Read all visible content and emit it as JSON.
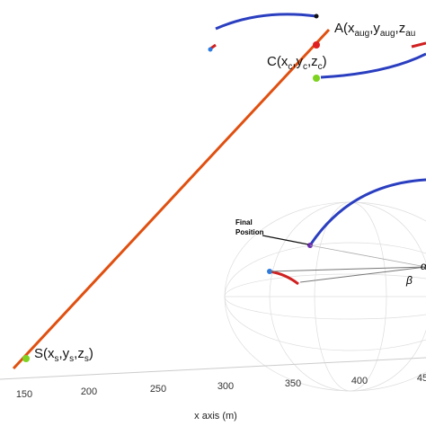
{
  "labels": {
    "a": [
      "A(x",
      "aug",
      ",y",
      "aug",
      ",z",
      "au"
    ],
    "c": [
      "C(x",
      "c",
      ",y",
      "c",
      ",z",
      "c",
      ")"
    ],
    "s": [
      "S(x",
      "s",
      ",y",
      "s",
      ",z",
      "s",
      ")"
    ]
  },
  "final_position": [
    "Final",
    "Position"
  ],
  "alpha": "α",
  "beta": "β",
  "x_axis": {
    "label": "x axis (m)",
    "ticks": [
      "150",
      "200",
      "250",
      "300",
      "350",
      "400",
      "45"
    ]
  }
}
